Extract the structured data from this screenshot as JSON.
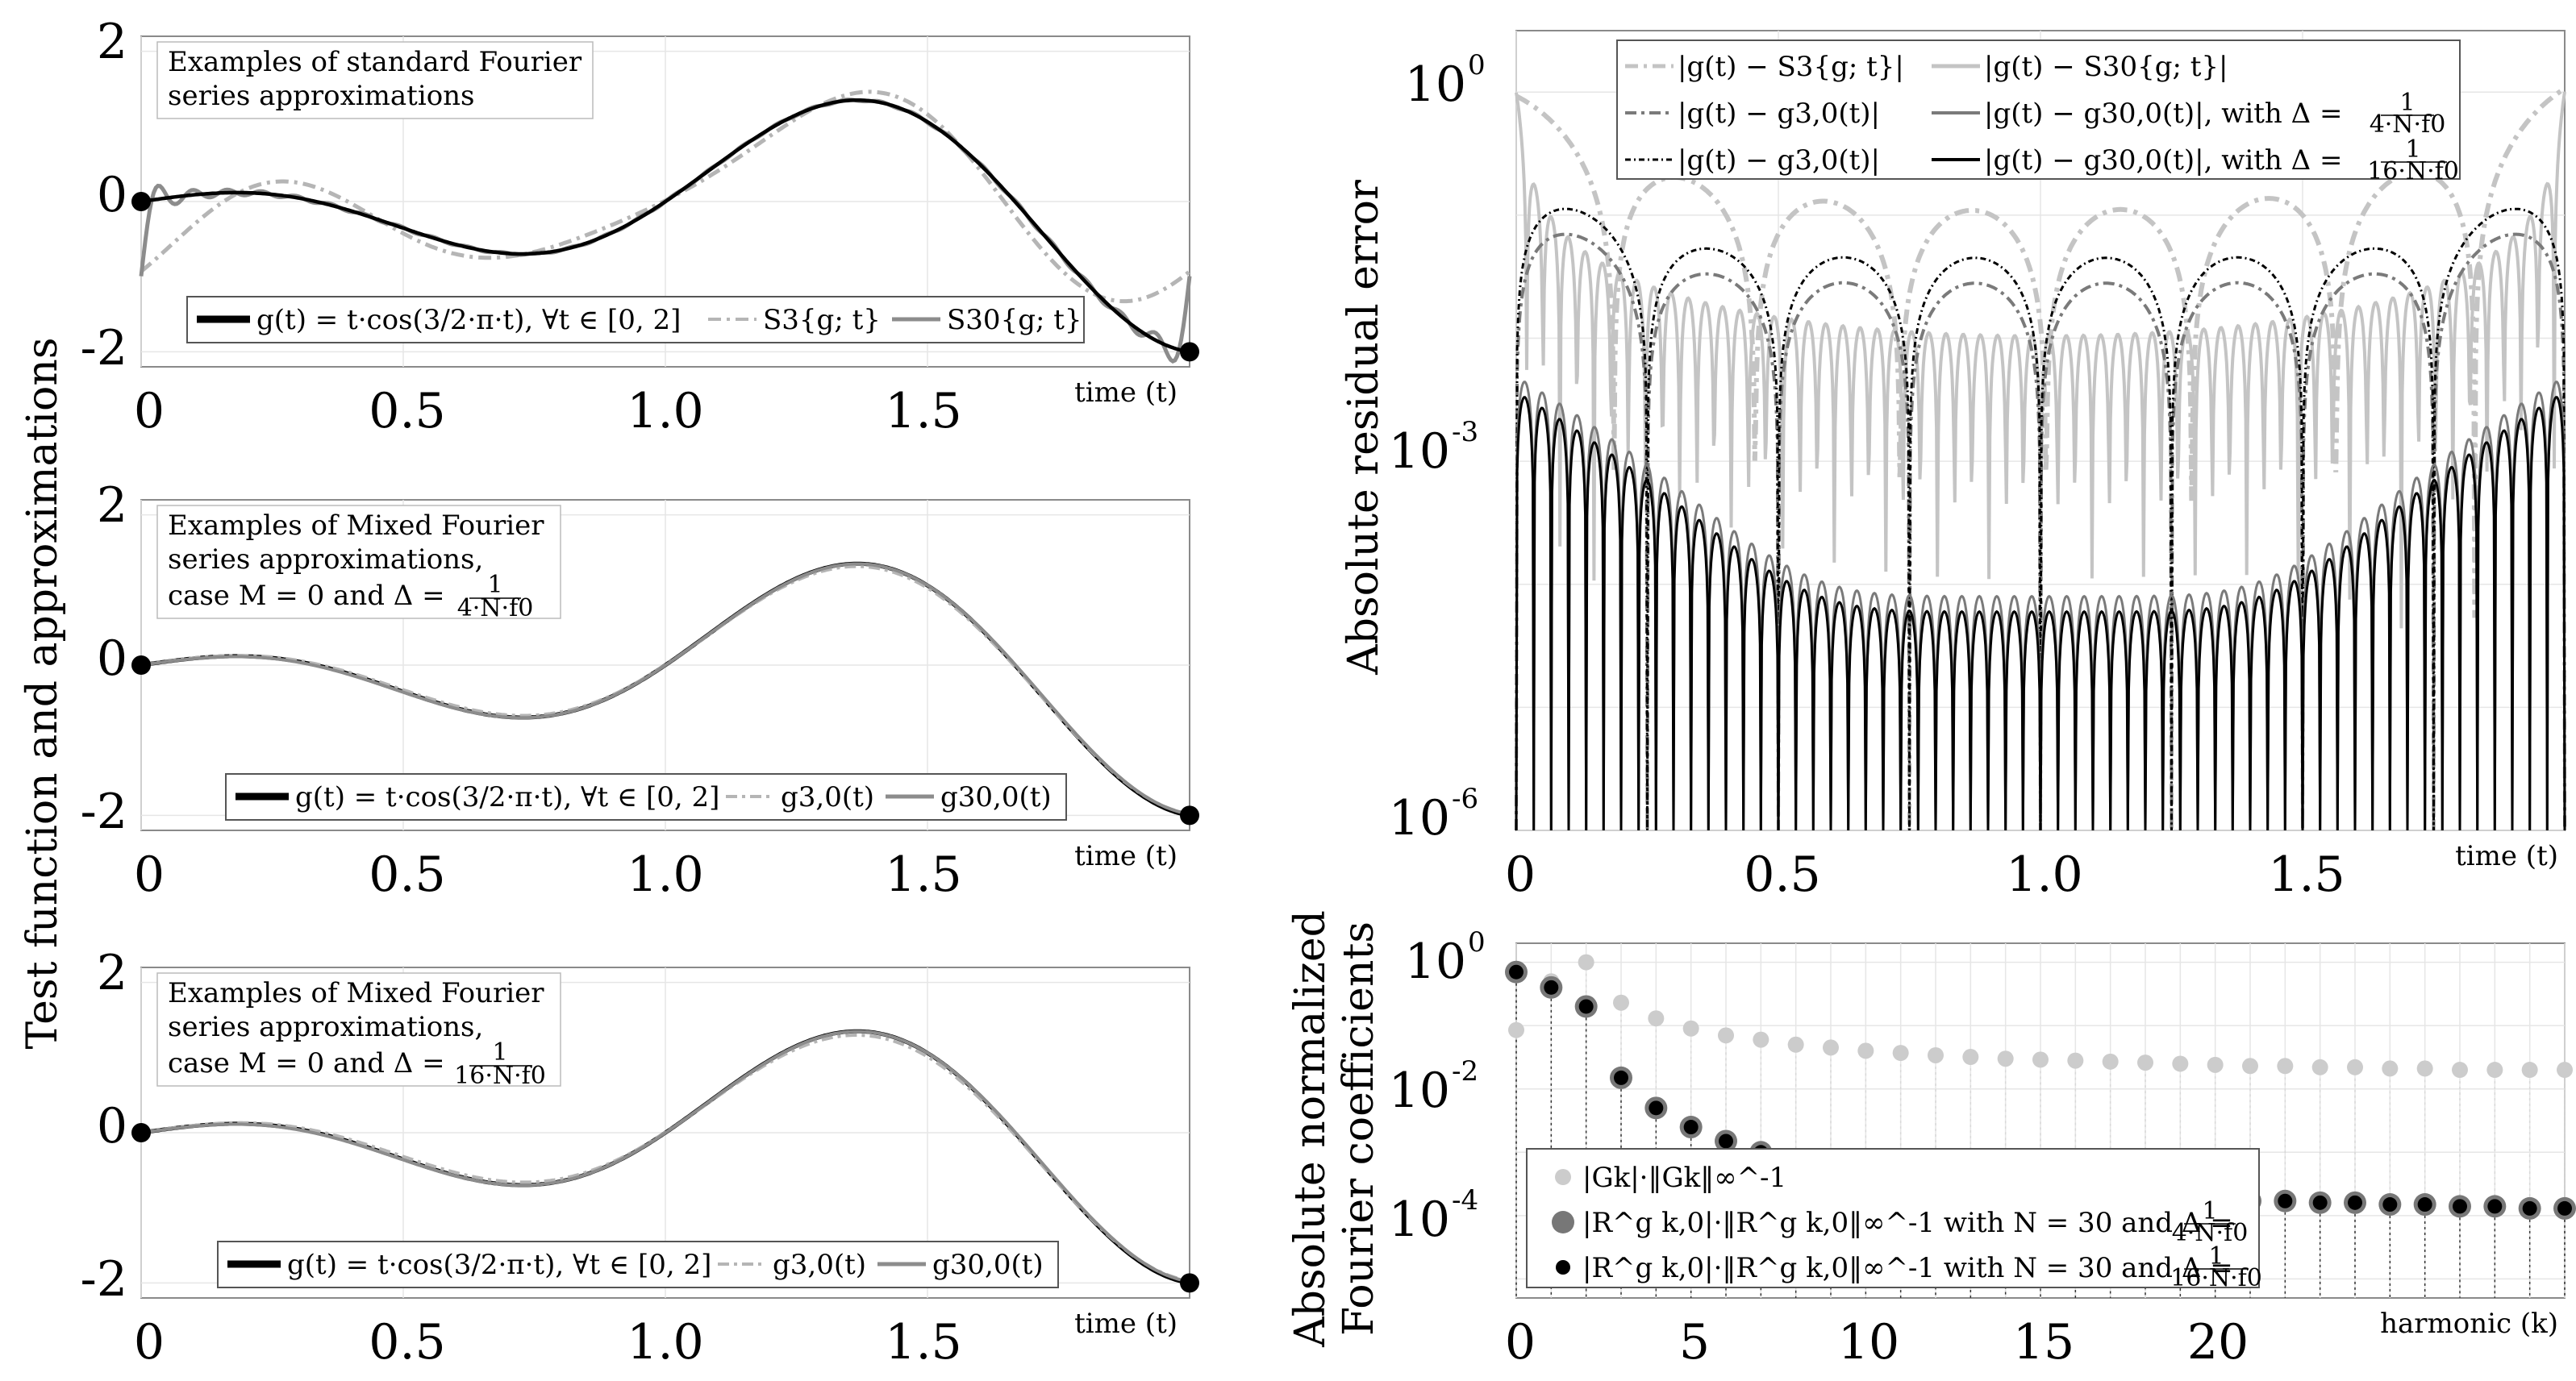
{
  "figure": {
    "left_ylabel": "Test function and approximations",
    "right_top_ylabel": "Absolute residual error",
    "right_bottom_ylabel_1": "Absolute normalized",
    "right_bottom_ylabel_2": "Fourier coefficients"
  },
  "chart_data": [
    {
      "id": "panel-a",
      "type": "line",
      "title_1": "Examples of standard Fourier",
      "title_2": "series approximations",
      "xlabel": "time (t)",
      "xlim": [
        0,
        2
      ],
      "ylim": [
        -2.2,
        2.2
      ],
      "xticks": [
        0,
        0.5,
        1.0,
        1.5
      ],
      "xtick_labels": [
        "0",
        "0.5",
        "1.0",
        "1.5"
      ],
      "yticks": [
        -2,
        0,
        2
      ],
      "ytick_labels": [
        "-2",
        "0",
        "2"
      ],
      "legend": [
        "g(t) = t·cos(3/2·π·t), ∀t ∈ [0, 2]",
        "S3{g; t}",
        "S30{g; t}"
      ],
      "series": [
        {
          "name": "g(t)",
          "function": "t*cos(1.5*pi*t)",
          "samples": 400,
          "color": "#000000"
        },
        {
          "name": "S3{g; t}",
          "method": "fourier partial sum, N=3, period 2",
          "color": "#b5b5b5"
        },
        {
          "name": "S30{g; t}",
          "method": "fourier partial sum, N=30, period 2",
          "color": "#8c8c8c"
        }
      ],
      "endpoints": [
        [
          0,
          0
        ],
        [
          2,
          -2
        ]
      ]
    },
    {
      "id": "panel-b",
      "type": "line",
      "title_1": "Examples of Mixed Fourier",
      "title_2": "series approximations,",
      "title_3a": "case M = 0 and Δ =",
      "frac_num": "1",
      "frac_den": "4·N·f0",
      "xlabel": "time (t)",
      "xlim": [
        0,
        2
      ],
      "ylim": [
        -2.2,
        2.2
      ],
      "xticks": [
        0,
        0.5,
        1.0,
        1.5
      ],
      "xtick_labels": [
        "0",
        "0.5",
        "1.0",
        "1.5"
      ],
      "yticks": [
        -2,
        0,
        2
      ],
      "ytick_labels": [
        "-2",
        "0",
        "2"
      ],
      "legend": [
        "g(t) = t·cos(3/2·π·t), ∀t ∈ [0, 2]",
        "g3,0(t)",
        "g30,0(t)"
      ],
      "series": [
        {
          "name": "g(t)",
          "function": "t*cos(1.5*pi*t)",
          "color": "#000000"
        },
        {
          "name": "g3,0(t)",
          "color": "#b5b5b5"
        },
        {
          "name": "g30,0(t)",
          "color": "#8c8c8c"
        }
      ],
      "endpoints": [
        [
          0,
          0
        ],
        [
          2,
          -2
        ]
      ]
    },
    {
      "id": "panel-c",
      "type": "line",
      "title_1": "Examples of Mixed Fourier",
      "title_2": "series approximations,",
      "title_3a": "case M = 0 and Δ =",
      "frac_num": "1",
      "frac_den": "16·N·f0",
      "xlabel": "time (t)",
      "xlim": [
        0,
        2
      ],
      "ylim": [
        -2.2,
        2.2
      ],
      "xticks": [
        0,
        0.5,
        1.0,
        1.5
      ],
      "xtick_labels": [
        "0",
        "0.5",
        "1.0",
        "1.5"
      ],
      "yticks": [
        -2,
        0,
        2
      ],
      "ytick_labels": [
        "-2",
        "0",
        "2"
      ],
      "legend": [
        "g(t) = t·cos(3/2·π·t), ∀t ∈ [0, 2]",
        "g3,0(t)",
        "g30,0(t)"
      ],
      "series": [
        {
          "name": "g(t)",
          "function": "t*cos(1.5*pi*t)",
          "color": "#000000"
        },
        {
          "name": "g3,0(t)",
          "color": "#b5b5b5"
        },
        {
          "name": "g30,0(t)",
          "color": "#8c8c8c"
        }
      ],
      "endpoints": [
        [
          0,
          0
        ],
        [
          2,
          -2
        ]
      ]
    },
    {
      "id": "panel-d",
      "type": "line",
      "yscale": "log",
      "ylabel": "Absolute residual error",
      "xlabel": "time (t)",
      "xlim": [
        0,
        2
      ],
      "ylim_log10": [
        -6,
        0.5
      ],
      "xticks": [
        0,
        0.5,
        1.0,
        1.5
      ],
      "xtick_labels": [
        "0",
        "0.5",
        "1.0",
        "1.5"
      ],
      "yticks_log10": [
        0,
        -3,
        -6
      ],
      "ytick_labels": [
        "10",
        "10",
        "10"
      ],
      "ytick_exponents": [
        "0",
        "-3",
        "-6"
      ],
      "legend": [
        "|g(t) − S3{g; t}|",
        "|g(t) − S30{g; t}|",
        "|g(t) − g3,0(t)|",
        "|g(t) − g30,0(t)|, with Δ =",
        "|g(t) − g3,0(t)|",
        "|g(t) − g30,0(t)|, with Δ ="
      ],
      "legend_fracs": [
        "1",
        "4·N·f0",
        "1",
        "16·N·f0"
      ],
      "series": [
        {
          "name": "|g − S3|",
          "typical": 0.05,
          "lobes": 7,
          "color": "#c4c4c4"
        },
        {
          "name": "|g − S30|",
          "typical": 0.005,
          "lobes": 60,
          "color": "#c4c4c4"
        },
        {
          "name": "|g − g3,0| (Δ=1/4Nf0)",
          "typical": 0.03,
          "lobes": 8,
          "color": "#7a7a7a"
        },
        {
          "name": "|g − g30,0| (Δ=1/4Nf0)",
          "typical": 5e-05,
          "lobes": 60,
          "color": "#7a7a7a"
        },
        {
          "name": "|g − g3,0| (Δ=1/16Nf0)",
          "typical": 0.04,
          "lobes": 8,
          "color": "#000000"
        },
        {
          "name": "|g − g30,0| (Δ=1/16Nf0)",
          "typical": 4e-05,
          "lobes": 60,
          "color": "#000000"
        }
      ]
    },
    {
      "id": "panel-e",
      "type": "scatter",
      "yscale": "log",
      "xlabel": "harmonic (k)",
      "ylabel_1": "Absolute normalized",
      "ylabel_2": "Fourier coefficients",
      "xlim": [
        0,
        30
      ],
      "ylim_log10": [
        -5.3,
        0.3
      ],
      "xticks": [
        0,
        5,
        10,
        15,
        20
      ],
      "xtick_labels": [
        "0",
        "5",
        "10",
        "15",
        "20"
      ],
      "yticks_log10": [
        0,
        -2,
        -4
      ],
      "ytick_labels": [
        "10",
        "10",
        "10"
      ],
      "ytick_exponents": [
        "0",
        "-2",
        "-4"
      ],
      "legend": [
        "|Gk|·‖Gk‖∞^-1",
        "|R^g k,0|·‖R^g k,0‖∞^-1 with N = 30 and Δ =",
        "|R^g k,0|·‖R^g k,0‖∞^-1 with N = 30 and Δ ="
      ],
      "legend_fracs": [
        "1",
        "4·N·f0",
        "1",
        "16·N·f0"
      ],
      "series": [
        {
          "name": "|Gk|",
          "k": [
            0,
            1,
            2,
            3,
            4,
            5,
            6,
            7,
            8,
            9,
            10,
            11,
            12,
            13,
            14,
            15,
            16,
            17,
            18,
            19,
            20,
            21,
            22,
            23,
            24,
            25,
            26,
            27,
            28,
            29,
            30
          ],
          "values": [
            0.085,
            0.5,
            1.0,
            0.23,
            0.13,
            0.09,
            0.07,
            0.06,
            0.05,
            0.045,
            0.04,
            0.037,
            0.034,
            0.032,
            0.03,
            0.029,
            0.028,
            0.027,
            0.026,
            0.025,
            0.024,
            0.023,
            0.023,
            0.022,
            0.022,
            0.021,
            0.021,
            0.02,
            0.02,
            0.02,
            0.02
          ],
          "color": "#cccccc"
        },
        {
          "name": "|R k,0| Δ=1/4Nf0",
          "k": [
            0,
            1,
            2,
            3,
            4,
            5,
            6,
            7,
            8,
            9,
            10,
            11,
            12,
            13,
            14,
            15,
            16,
            17,
            18,
            19,
            20,
            21,
            22,
            23,
            24,
            25,
            26,
            27,
            28,
            29,
            30
          ],
          "values": [
            0.7,
            0.4,
            0.2,
            0.015,
            0.005,
            0.0025,
            0.0015,
            0.001,
            0.0006,
            0.00045,
            0.00038,
            0.00033,
            0.0003,
            0.00027,
            0.00025,
            0.00023,
            0.00022,
            0.00021,
            0.0002,
            0.00019,
            0.00018,
            0.00017,
            0.00017,
            0.00016,
            0.00016,
            0.00015,
            0.00015,
            0.00014,
            0.00014,
            0.00013,
            0.00013
          ],
          "color": "#777777"
        },
        {
          "name": "|R k,0| Δ=1/16Nf0",
          "k": [
            0,
            1,
            2,
            3,
            4,
            5,
            6,
            7,
            8,
            9,
            10,
            11,
            12,
            13,
            14,
            15,
            16,
            17,
            18,
            19,
            20,
            21,
            22,
            23,
            24,
            25,
            26,
            27,
            28,
            29,
            30
          ],
          "values": [
            0.7,
            0.4,
            0.2,
            0.015,
            0.005,
            0.0025,
            0.0015,
            0.001,
            0.0006,
            0.00045,
            0.00038,
            0.00033,
            0.0003,
            0.00027,
            0.00025,
            0.00023,
            0.00022,
            0.00021,
            0.0002,
            0.00019,
            0.00018,
            0.00017,
            0.00017,
            0.00016,
            0.00016,
            0.00015,
            0.00015,
            0.00014,
            0.00014,
            0.00013,
            0.00013
          ],
          "color": "#000000"
        }
      ]
    }
  ]
}
